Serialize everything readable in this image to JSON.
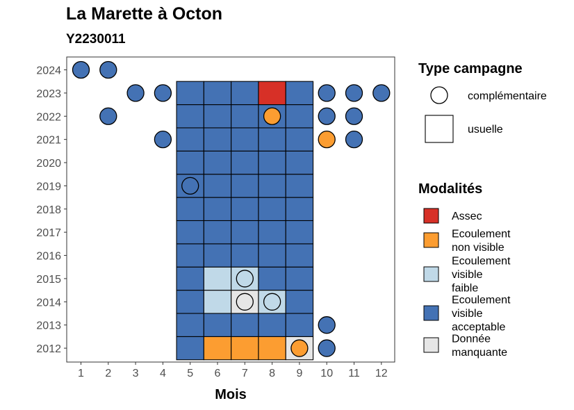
{
  "chart_data": {
    "type": "heatmap",
    "title": "La Marette à Octon",
    "subtitle": "Y2230011",
    "xlabel": "Mois",
    "ylabel": "",
    "x_ticks": [
      "1",
      "2",
      "3",
      "4",
      "5",
      "6",
      "7",
      "8",
      "9",
      "10",
      "11",
      "12"
    ],
    "y_ticks": [
      "2012",
      "2013",
      "2014",
      "2015",
      "2016",
      "2017",
      "2018",
      "2019",
      "2020",
      "2021",
      "2022",
      "2023",
      "2024"
    ],
    "grid": false,
    "legend_type": {
      "title": "Type campagne",
      "items": [
        {
          "shape": "circle",
          "label": "complémentaire"
        },
        {
          "shape": "square",
          "label": "usuelle"
        }
      ]
    },
    "legend_mod": {
      "title": "Modalités",
      "items": [
        {
          "key": "assec",
          "lines": [
            "Assec"
          ],
          "color": "#d73027"
        },
        {
          "key": "nonvisible",
          "lines": [
            "Ecoulement",
            "non visible"
          ],
          "color": "#fc9d31"
        },
        {
          "key": "faible",
          "lines": [
            "Ecoulement",
            "visible",
            "faible"
          ],
          "color": "#c0d9e8"
        },
        {
          "key": "acceptable",
          "lines": [
            "Ecoulement",
            "visible",
            "acceptable"
          ],
          "color": "#4472b4"
        },
        {
          "key": "manquante",
          "lines": [
            "Donnée",
            "manquante"
          ],
          "color": "#e6e6e6"
        }
      ]
    },
    "squares": [
      {
        "year": 2012,
        "month": 5,
        "m": "acceptable"
      },
      {
        "year": 2012,
        "month": 6,
        "m": "nonvisible"
      },
      {
        "year": 2012,
        "month": 7,
        "m": "nonvisible"
      },
      {
        "year": 2012,
        "month": 8,
        "m": "nonvisible"
      },
      {
        "year": 2012,
        "month": 9,
        "m": "manquante"
      },
      {
        "year": 2013,
        "month": 5,
        "m": "acceptable"
      },
      {
        "year": 2013,
        "month": 6,
        "m": "acceptable"
      },
      {
        "year": 2013,
        "month": 7,
        "m": "acceptable"
      },
      {
        "year": 2013,
        "month": 8,
        "m": "acceptable"
      },
      {
        "year": 2013,
        "month": 9,
        "m": "acceptable"
      },
      {
        "year": 2014,
        "month": 5,
        "m": "acceptable"
      },
      {
        "year": 2014,
        "month": 6,
        "m": "faible"
      },
      {
        "year": 2014,
        "month": 7,
        "m": "manquante"
      },
      {
        "year": 2014,
        "month": 8,
        "m": "faible"
      },
      {
        "year": 2014,
        "month": 9,
        "m": "acceptable"
      },
      {
        "year": 2015,
        "month": 5,
        "m": "acceptable"
      },
      {
        "year": 2015,
        "month": 6,
        "m": "faible"
      },
      {
        "year": 2015,
        "month": 7,
        "m": "faible"
      },
      {
        "year": 2015,
        "month": 8,
        "m": "acceptable"
      },
      {
        "year": 2015,
        "month": 9,
        "m": "acceptable"
      },
      {
        "year": 2016,
        "month": 5,
        "m": "acceptable"
      },
      {
        "year": 2016,
        "month": 6,
        "m": "acceptable"
      },
      {
        "year": 2016,
        "month": 7,
        "m": "acceptable"
      },
      {
        "year": 2016,
        "month": 8,
        "m": "acceptable"
      },
      {
        "year": 2016,
        "month": 9,
        "m": "acceptable"
      },
      {
        "year": 2017,
        "month": 5,
        "m": "acceptable"
      },
      {
        "year": 2017,
        "month": 6,
        "m": "acceptable"
      },
      {
        "year": 2017,
        "month": 7,
        "m": "acceptable"
      },
      {
        "year": 2017,
        "month": 8,
        "m": "acceptable"
      },
      {
        "year": 2017,
        "month": 9,
        "m": "acceptable"
      },
      {
        "year": 2018,
        "month": 5,
        "m": "acceptable"
      },
      {
        "year": 2018,
        "month": 6,
        "m": "acceptable"
      },
      {
        "year": 2018,
        "month": 7,
        "m": "acceptable"
      },
      {
        "year": 2018,
        "month": 8,
        "m": "acceptable"
      },
      {
        "year": 2018,
        "month": 9,
        "m": "acceptable"
      },
      {
        "year": 2019,
        "month": 5,
        "m": "acceptable"
      },
      {
        "year": 2019,
        "month": 6,
        "m": "acceptable"
      },
      {
        "year": 2019,
        "month": 7,
        "m": "acceptable"
      },
      {
        "year": 2019,
        "month": 8,
        "m": "acceptable"
      },
      {
        "year": 2019,
        "month": 9,
        "m": "acceptable"
      },
      {
        "year": 2020,
        "month": 5,
        "m": "acceptable"
      },
      {
        "year": 2020,
        "month": 6,
        "m": "acceptable"
      },
      {
        "year": 2020,
        "month": 7,
        "m": "acceptable"
      },
      {
        "year": 2020,
        "month": 8,
        "m": "acceptable"
      },
      {
        "year": 2020,
        "month": 9,
        "m": "acceptable"
      },
      {
        "year": 2021,
        "month": 5,
        "m": "acceptable"
      },
      {
        "year": 2021,
        "month": 6,
        "m": "acceptable"
      },
      {
        "year": 2021,
        "month": 7,
        "m": "acceptable"
      },
      {
        "year": 2021,
        "month": 8,
        "m": "acceptable"
      },
      {
        "year": 2021,
        "month": 9,
        "m": "acceptable"
      },
      {
        "year": 2022,
        "month": 5,
        "m": "acceptable"
      },
      {
        "year": 2022,
        "month": 6,
        "m": "acceptable"
      },
      {
        "year": 2022,
        "month": 7,
        "m": "acceptable"
      },
      {
        "year": 2022,
        "month": 8,
        "m": "acceptable"
      },
      {
        "year": 2022,
        "month": 9,
        "m": "acceptable"
      },
      {
        "year": 2023,
        "month": 5,
        "m": "acceptable"
      },
      {
        "year": 2023,
        "month": 6,
        "m": "acceptable"
      },
      {
        "year": 2023,
        "month": 7,
        "m": "acceptable"
      },
      {
        "year": 2023,
        "month": 8,
        "m": "assec"
      },
      {
        "year": 2023,
        "month": 9,
        "m": "acceptable"
      }
    ],
    "circles": [
      {
        "year": 2024,
        "month": 1,
        "m": "acceptable"
      },
      {
        "year": 2024,
        "month": 2,
        "m": "acceptable"
      },
      {
        "year": 2023,
        "month": 3,
        "m": "acceptable"
      },
      {
        "year": 2023,
        "month": 4,
        "m": "acceptable"
      },
      {
        "year": 2023,
        "month": 10,
        "m": "acceptable"
      },
      {
        "year": 2023,
        "month": 11,
        "m": "acceptable"
      },
      {
        "year": 2023,
        "month": 12,
        "m": "acceptable"
      },
      {
        "year": 2022,
        "month": 2,
        "m": "acceptable"
      },
      {
        "year": 2022,
        "month": 8,
        "m": "nonvisible"
      },
      {
        "year": 2022,
        "month": 10,
        "m": "acceptable"
      },
      {
        "year": 2022,
        "month": 11,
        "m": "acceptable"
      },
      {
        "year": 2021,
        "month": 4,
        "m": "acceptable"
      },
      {
        "year": 2021,
        "month": 10,
        "m": "nonvisible"
      },
      {
        "year": 2021,
        "month": 11,
        "m": "acceptable"
      },
      {
        "year": 2019,
        "month": 5,
        "m": "acceptable"
      },
      {
        "year": 2015,
        "month": 7,
        "m": "faible"
      },
      {
        "year": 2014,
        "month": 7,
        "m": "manquante"
      },
      {
        "year": 2014,
        "month": 8,
        "m": "faible"
      },
      {
        "year": 2013,
        "month": 10,
        "m": "acceptable"
      },
      {
        "year": 2012,
        "month": 9,
        "m": "nonvisible"
      },
      {
        "year": 2012,
        "month": 10,
        "m": "acceptable"
      }
    ]
  }
}
